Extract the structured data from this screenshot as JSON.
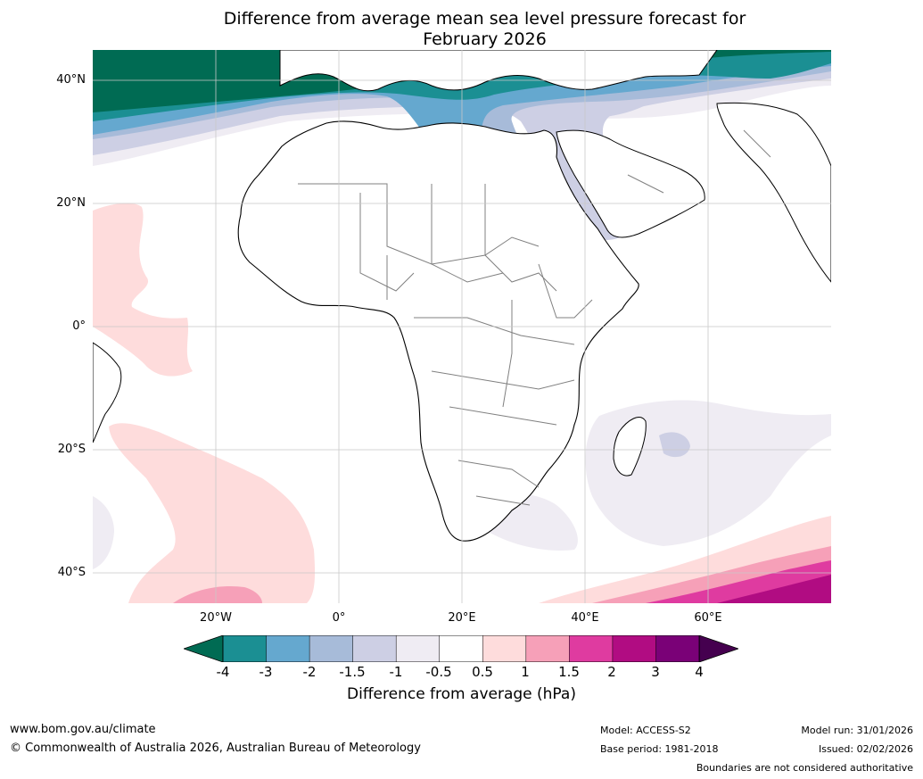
{
  "title": {
    "line1": "Difference from average mean sea level pressure forecast for",
    "line2": "February 2026"
  },
  "map": {
    "region": "Africa",
    "latitude_labels": [
      "40°N",
      "20°N",
      "0°",
      "20°S",
      "40°S"
    ],
    "longitude_labels": [
      "20°W",
      "0°",
      "20°E",
      "40°E",
      "60°E"
    ],
    "colors": {
      "ocean_background": "#ffffff",
      "land_fill": "#ffffff",
      "coastline": "#000000",
      "borders": "#808080",
      "gridlines": "#c8c8c8"
    }
  },
  "colorbar": {
    "title": "Difference from average (hPa)",
    "tick_labels": [
      "-4",
      "-3",
      "-2",
      "-1.5",
      "-1",
      "-0.5",
      "0.5",
      "1",
      "1.5",
      "2",
      "3",
      "4"
    ],
    "under_color": "#006b53",
    "over_color": "#45004f",
    "bin_colors": [
      "#1b8f93",
      "#65a8cf",
      "#a7bbd9",
      "#cdcfe4",
      "#efecf3",
      "#ffffff",
      "#fedcdc",
      "#f6a0b8",
      "#df3ba0",
      "#b10c82",
      "#7a0177"
    ]
  },
  "footer": {
    "website": "www.bom.gov.au/climate",
    "copyright": "© Commonwealth of Australia 2026, Australian Bureau of Meteorology",
    "model": "Model: ACCESS-S2",
    "base_period": "Base period: 1981-2018",
    "model_run": "Model run: 31/01/2026",
    "issued": "Issued: 02/02/2026",
    "disclaimer": "Boundaries are not considered authoritative"
  }
}
